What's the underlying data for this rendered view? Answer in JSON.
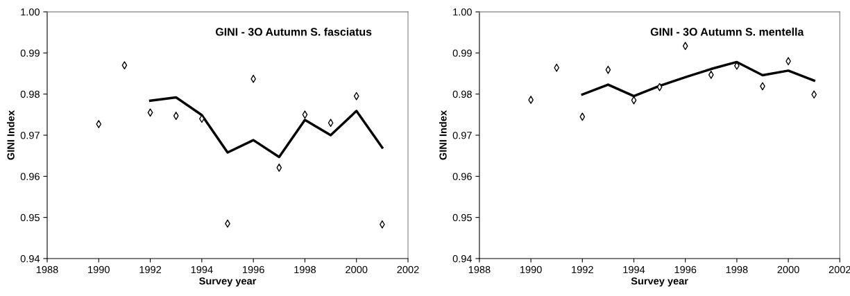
{
  "chart_data": [
    {
      "type": "scatter",
      "title": "GINI - 3O Autumn S. fasciatus",
      "xlabel": "Survey year",
      "ylabel": "GINI Index",
      "xlim": [
        1988,
        2002
      ],
      "xticks": [
        1988,
        1990,
        1992,
        1994,
        1996,
        1998,
        2000,
        2002
      ],
      "ylim": [
        0.94,
        1.0
      ],
      "yticks": [
        {
          "value": 0.94,
          "label": "0.94"
        },
        {
          "value": 0.95,
          "label": "0.95"
        },
        {
          "value": 0.96,
          "label": "0.96"
        },
        {
          "value": 0.97,
          "label": "0.97"
        },
        {
          "value": 0.98,
          "label": "0.98"
        },
        {
          "value": 0.99,
          "label": "0.99"
        },
        {
          "value": 1.0,
          "label": "1.00"
        }
      ],
      "grid": false,
      "legend": false,
      "series": [
        {
          "marker": "diamond",
          "color": "#000000",
          "x": [
            1990,
            1991,
            1992,
            1993,
            1994,
            1995,
            1996,
            1997,
            1998,
            1999,
            2000,
            2001
          ],
          "values": [
            0.9727,
            0.987,
            0.9755,
            0.9747,
            0.974,
            0.9485,
            0.9837,
            0.9621,
            0.975,
            0.973,
            0.9795,
            0.9483
          ]
        },
        {
          "type": "line",
          "line_style": "solid",
          "color": "#000000",
          "x": [
            1992,
            1993,
            1994,
            1995,
            1996,
            1997,
            1998,
            1999,
            2000,
            2001
          ],
          "values": [
            0.9784,
            0.9792,
            0.9749,
            0.9658,
            0.9688,
            0.9647,
            0.9737,
            0.97,
            0.9759,
            0.967
          ]
        }
      ]
    },
    {
      "type": "scatter",
      "title": "GINI - 3O Autumn S. mentella",
      "xlabel": "Survey year",
      "ylabel": "GINI Index",
      "xlim": [
        1988,
        2002
      ],
      "xticks": [
        1988,
        1990,
        1992,
        1994,
        1996,
        1998,
        2000,
        2002
      ],
      "ylim": [
        0.94,
        1.0
      ],
      "yticks": [
        {
          "value": 0.94,
          "label": "0.94"
        },
        {
          "value": 0.95,
          "label": "0.95"
        },
        {
          "value": 0.96,
          "label": "0.96"
        },
        {
          "value": 0.97,
          "label": "0.97"
        },
        {
          "value": 0.98,
          "label": "0.98"
        },
        {
          "value": 0.99,
          "label": "0.99"
        },
        {
          "value": 1.0,
          "label": "1.00"
        }
      ],
      "grid": false,
      "legend": false,
      "series": [
        {
          "marker": "diamond",
          "color": "#000000",
          "x": [
            1990,
            1991,
            1992,
            1993,
            1994,
            1995,
            1996,
            1997,
            1998,
            1999,
            2000,
            2001
          ],
          "values": [
            0.9786,
            0.9864,
            0.9745,
            0.9859,
            0.9785,
            0.9817,
            0.9917,
            0.9847,
            0.9869,
            0.9819,
            0.988,
            0.9799
          ]
        },
        {
          "type": "line",
          "line_style": "solid",
          "color": "#000000",
          "x": [
            1992,
            1993,
            1994,
            1995,
            1996,
            1997,
            1998,
            1999,
            2000,
            2001
          ],
          "values": [
            0.9799,
            0.9823,
            0.9795,
            0.982,
            0.9841,
            0.9861,
            0.9878,
            0.9846,
            0.9857,
            0.9833
          ]
        }
      ]
    }
  ]
}
